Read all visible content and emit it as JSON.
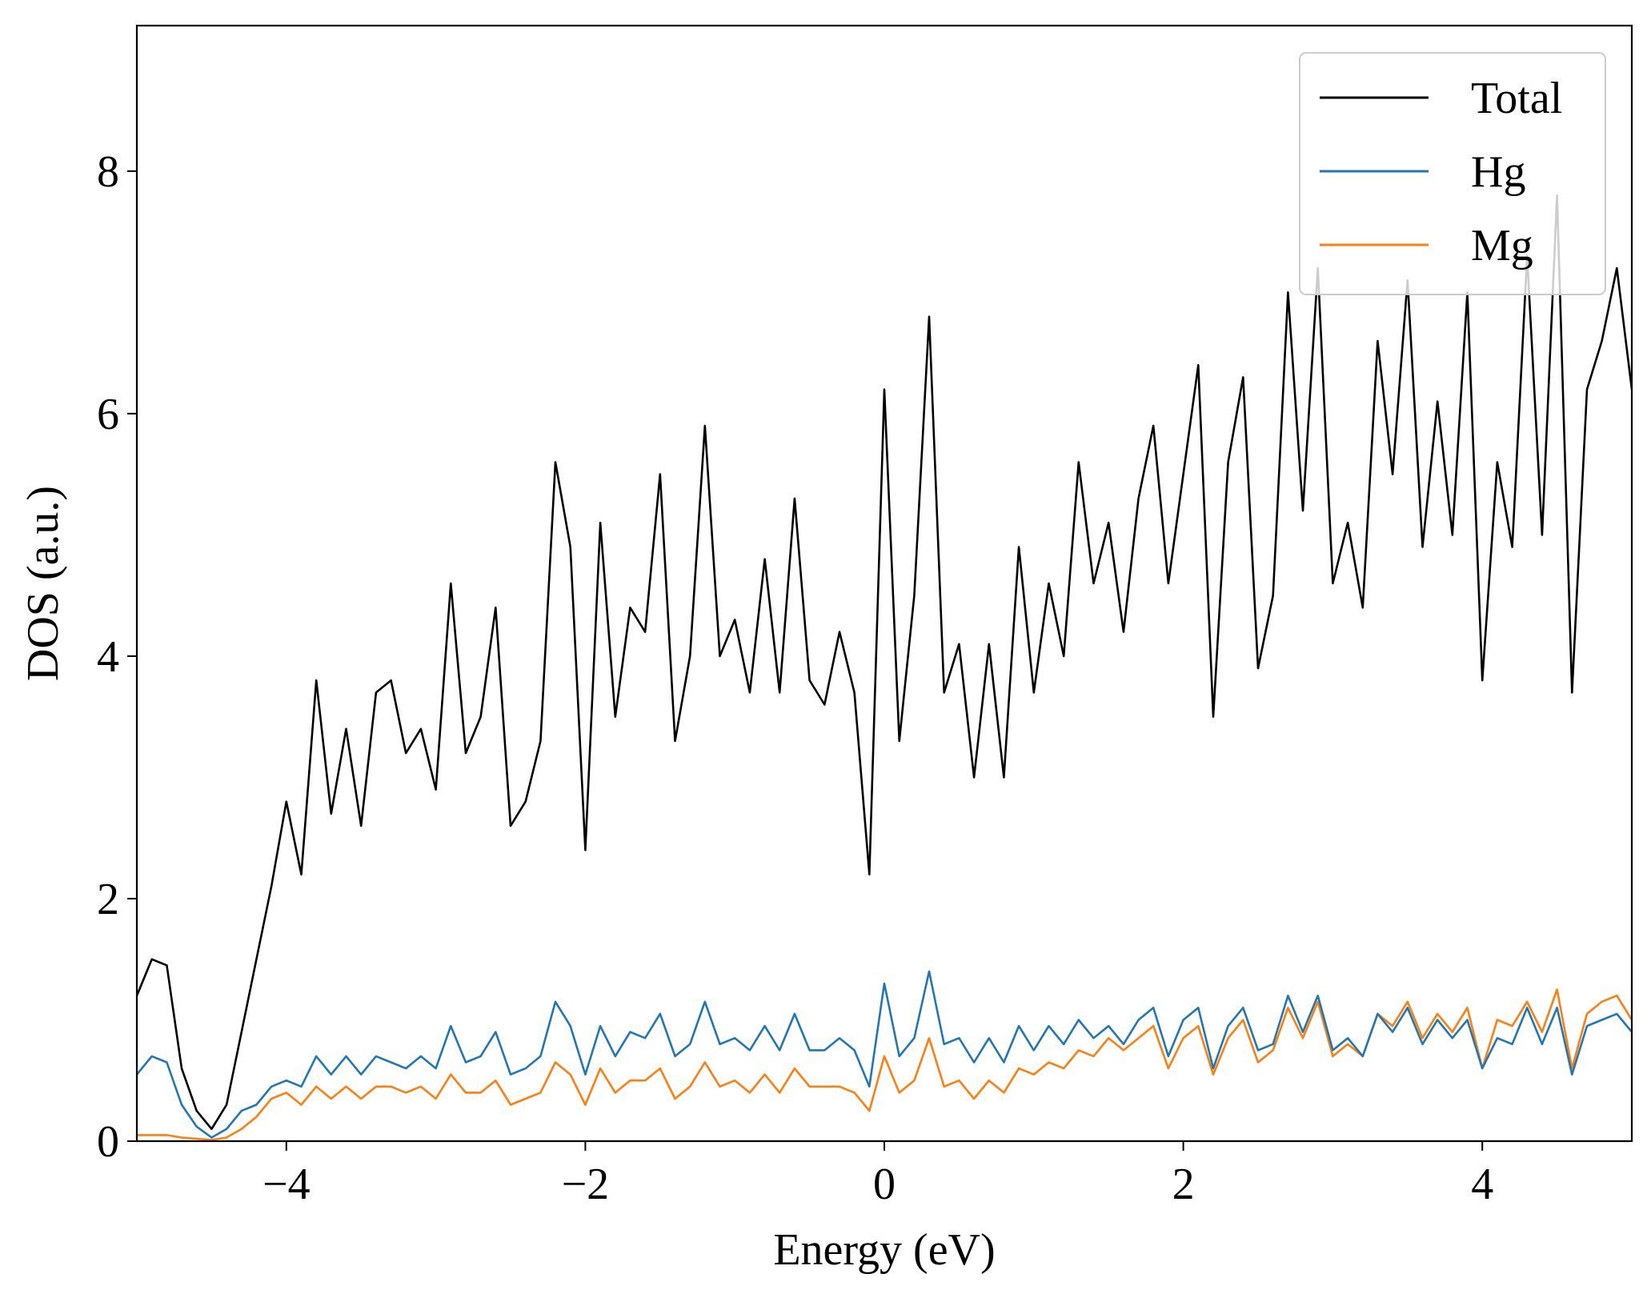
{
  "chart_data": {
    "type": "line",
    "xlabel": "Energy (eV)",
    "ylabel": "DOS (a.u.)",
    "x": [
      -5.0,
      -4.9,
      -4.8,
      -4.7,
      -4.6,
      -4.5,
      -4.4,
      -4.3,
      -4.2,
      -4.1,
      -4.0,
      -3.9,
      -3.8,
      -3.7,
      -3.6,
      -3.5,
      -3.4,
      -3.3,
      -3.2,
      -3.1,
      -3.0,
      -2.9,
      -2.8,
      -2.7,
      -2.6,
      -2.5,
      -2.4,
      -2.3,
      -2.2,
      -2.1,
      -2.0,
      -1.9,
      -1.8,
      -1.7,
      -1.6,
      -1.5,
      -1.4,
      -1.3,
      -1.2,
      -1.1,
      -1.0,
      -0.9,
      -0.8,
      -0.7,
      -0.6,
      -0.5,
      -0.4,
      -0.3,
      -0.2,
      -0.1,
      0.0,
      0.1,
      0.2,
      0.3,
      0.4,
      0.5,
      0.6,
      0.7,
      0.8,
      0.9,
      1.0,
      1.1,
      1.2,
      1.3,
      1.4,
      1.5,
      1.6,
      1.7,
      1.8,
      1.9,
      2.0,
      2.1,
      2.2,
      2.3,
      2.4,
      2.5,
      2.6,
      2.7,
      2.8,
      2.9,
      3.0,
      3.1,
      3.2,
      3.3,
      3.4,
      3.5,
      3.6,
      3.7,
      3.8,
      3.9,
      4.0,
      4.1,
      4.2,
      4.3,
      4.4,
      4.5,
      4.6,
      4.7,
      4.8,
      4.9,
      5.0
    ],
    "series": [
      {
        "name": "Total",
        "color": "#000000",
        "values": [
          1.2,
          1.5,
          1.45,
          0.6,
          0.25,
          0.1,
          0.3,
          0.9,
          1.5,
          2.1,
          2.8,
          2.2,
          3.8,
          2.7,
          3.4,
          2.6,
          3.7,
          3.8,
          3.2,
          3.4,
          2.9,
          4.6,
          3.2,
          3.5,
          4.4,
          2.6,
          2.8,
          3.3,
          5.6,
          4.9,
          2.4,
          5.1,
          3.5,
          4.4,
          4.2,
          5.5,
          3.3,
          4.0,
          5.9,
          4.0,
          4.3,
          3.7,
          4.8,
          3.7,
          5.3,
          3.8,
          3.6,
          4.2,
          3.7,
          2.2,
          6.2,
          3.3,
          4.5,
          6.8,
          3.7,
          4.1,
          3.0,
          4.1,
          3.0,
          4.9,
          3.7,
          4.6,
          4.0,
          5.6,
          4.6,
          5.1,
          4.2,
          5.3,
          5.9,
          4.6,
          5.5,
          6.4,
          3.5,
          5.6,
          6.3,
          3.9,
          4.5,
          7.0,
          5.2,
          7.2,
          4.6,
          5.1,
          4.4,
          6.6,
          5.5,
          7.1,
          4.9,
          6.1,
          5.0,
          7.0,
          3.8,
          5.6,
          4.9,
          7.3,
          5.0,
          7.8,
          3.7,
          6.2,
          6.6,
          7.2,
          6.2
        ]
      },
      {
        "name": "Hg",
        "color": "#1f77b4",
        "values": [
          0.55,
          0.7,
          0.65,
          0.3,
          0.12,
          0.03,
          0.1,
          0.25,
          0.3,
          0.45,
          0.5,
          0.45,
          0.7,
          0.55,
          0.7,
          0.55,
          0.7,
          0.65,
          0.6,
          0.7,
          0.6,
          0.95,
          0.65,
          0.7,
          0.9,
          0.55,
          0.6,
          0.7,
          1.15,
          0.95,
          0.55,
          0.95,
          0.7,
          0.9,
          0.85,
          1.05,
          0.7,
          0.8,
          1.15,
          0.8,
          0.85,
          0.75,
          0.95,
          0.75,
          1.05,
          0.75,
          0.75,
          0.85,
          0.75,
          0.45,
          1.3,
          0.7,
          0.85,
          1.4,
          0.8,
          0.85,
          0.65,
          0.85,
          0.65,
          0.95,
          0.75,
          0.95,
          0.8,
          1.0,
          0.85,
          0.95,
          0.8,
          1.0,
          1.1,
          0.7,
          1.0,
          1.1,
          0.6,
          0.95,
          1.1,
          0.75,
          0.8,
          1.2,
          0.9,
          1.2,
          0.75,
          0.85,
          0.7,
          1.05,
          0.9,
          1.1,
          0.8,
          1.0,
          0.85,
          1.0,
          0.6,
          0.85,
          0.8,
          1.1,
          0.8,
          1.1,
          0.55,
          0.95,
          1.0,
          1.05,
          0.9
        ]
      },
      {
        "name": "Mg",
        "color": "#ff7f0e",
        "values": [
          0.05,
          0.05,
          0.05,
          0.03,
          0.02,
          0.01,
          0.03,
          0.1,
          0.2,
          0.35,
          0.4,
          0.3,
          0.45,
          0.35,
          0.45,
          0.35,
          0.45,
          0.45,
          0.4,
          0.45,
          0.35,
          0.55,
          0.4,
          0.4,
          0.5,
          0.3,
          0.35,
          0.4,
          0.65,
          0.55,
          0.3,
          0.6,
          0.4,
          0.5,
          0.5,
          0.6,
          0.35,
          0.45,
          0.65,
          0.45,
          0.5,
          0.4,
          0.55,
          0.4,
          0.6,
          0.45,
          0.45,
          0.45,
          0.4,
          0.25,
          0.7,
          0.4,
          0.5,
          0.85,
          0.45,
          0.5,
          0.35,
          0.5,
          0.4,
          0.6,
          0.55,
          0.65,
          0.6,
          0.75,
          0.7,
          0.85,
          0.75,
          0.85,
          0.95,
          0.6,
          0.85,
          0.95,
          0.55,
          0.85,
          1.0,
          0.65,
          0.75,
          1.1,
          0.85,
          1.15,
          0.7,
          0.8,
          0.7,
          1.05,
          0.95,
          1.15,
          0.85,
          1.05,
          0.9,
          1.1,
          0.6,
          1.0,
          0.95,
          1.15,
          0.9,
          1.25,
          0.6,
          1.05,
          1.15,
          1.2,
          1.0
        ]
      }
    ],
    "xlim": [
      -5,
      5
    ],
    "ylim": [
      0,
      9.2
    ],
    "xticks": [
      {
        "value": -4,
        "label": "−4"
      },
      {
        "value": -2,
        "label": "−2"
      },
      0,
      2,
      4
    ],
    "yticks": [
      0,
      2,
      4,
      6,
      8
    ],
    "legend": "upper right",
    "grid": false
  }
}
